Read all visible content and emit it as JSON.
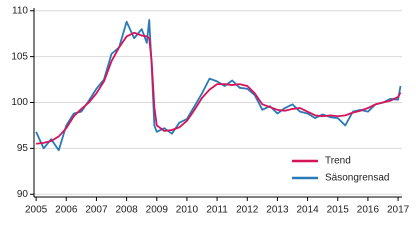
{
  "chart_data": {
    "type": "line",
    "x": [
      2005,
      2005.25,
      2005.5,
      2005.75,
      2006,
      2006.25,
      2006.5,
      2006.75,
      2007,
      2007.25,
      2007.5,
      2007.75,
      2008,
      2008.25,
      2008.5,
      2008.67,
      2008.75,
      2008.83,
      2008.92,
      2009,
      2009.25,
      2009.5,
      2009.75,
      2010,
      2010.25,
      2010.5,
      2010.75,
      2011,
      2011.25,
      2011.5,
      2011.75,
      2012,
      2012.25,
      2012.5,
      2012.75,
      2013,
      2013.25,
      2013.5,
      2013.75,
      2014,
      2014.25,
      2014.5,
      2014.75,
      2015,
      2015.25,
      2015.5,
      2015.75,
      2016,
      2016.25,
      2016.5,
      2016.75,
      2017,
      2017.08
    ],
    "series": [
      {
        "name": "Trend",
        "color": "#d5145a",
        "values": [
          95.5,
          95.6,
          95.8,
          96.3,
          97.2,
          98.5,
          99.3,
          100.0,
          101.0,
          102.3,
          104.5,
          106.0,
          107.2,
          107.6,
          107.3,
          107.2,
          107.0,
          104.5,
          99.5,
          97.5,
          96.9,
          97.0,
          97.3,
          98.0,
          99.2,
          100.5,
          101.4,
          102.0,
          102.0,
          101.9,
          102.0,
          101.8,
          101.0,
          99.8,
          99.5,
          99.2,
          99.1,
          99.3,
          99.4,
          99.0,
          98.6,
          98.5,
          98.6,
          98.5,
          98.6,
          98.9,
          99.1,
          99.4,
          99.8,
          100.0,
          100.2,
          100.6,
          101.1
        ]
      },
      {
        "name": "Säsongrensad",
        "color": "#2a7ab9",
        "values": [
          96.8,
          95.0,
          96.0,
          94.8,
          97.5,
          98.8,
          99.0,
          100.2,
          101.5,
          102.5,
          105.3,
          106.0,
          108.8,
          107.0,
          108.0,
          106.5,
          109.0,
          104.0,
          97.5,
          96.8,
          97.2,
          96.6,
          97.8,
          98.2,
          99.6,
          101.0,
          102.6,
          102.3,
          101.8,
          102.4,
          101.6,
          101.5,
          100.8,
          99.2,
          99.6,
          98.8,
          99.4,
          99.8,
          99.0,
          98.8,
          98.3,
          98.7,
          98.4,
          98.3,
          97.5,
          99.0,
          99.2,
          99.0,
          99.8,
          100.0,
          100.4,
          100.3,
          101.8
        ]
      }
    ],
    "xlim": [
      2004.93,
      2017.13
    ],
    "xticks": [
      2005,
      2006,
      2007,
      2008,
      2009,
      2010,
      2011,
      2012,
      2013,
      2014,
      2015,
      2016,
      2017
    ],
    "ylim": [
      89.7,
      110.3
    ],
    "yticks": [
      90,
      95,
      100,
      105,
      110
    ],
    "grid": true,
    "legend": "lower-right"
  }
}
